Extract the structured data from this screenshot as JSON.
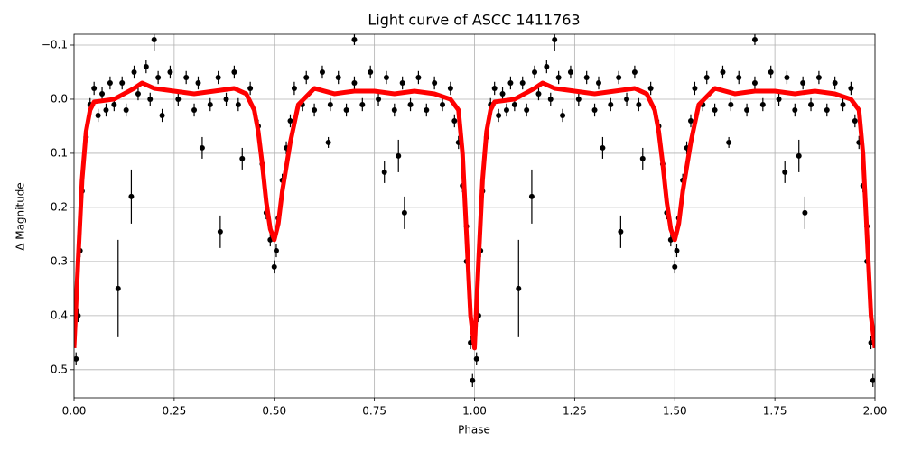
{
  "chart_data": {
    "type": "scatter",
    "title": "Light curve of ASCC 1411763",
    "x_label": "Phase",
    "y_label": "Δ Magnitude",
    "xlim": [
      0,
      2
    ],
    "ylim": [
      -0.12,
      0.552
    ],
    "y_inverted": true,
    "grid": true,
    "xticks": [
      {
        "value": 0,
        "label": "0.00"
      },
      {
        "value": 0.25,
        "label": "0.25"
      },
      {
        "value": 0.5,
        "label": "0.50"
      },
      {
        "value": 0.75,
        "label": "0.75"
      },
      {
        "value": 1,
        "label": "1.00"
      },
      {
        "value": 1.25,
        "label": "1.25"
      },
      {
        "value": 1.5,
        "label": "1.50"
      },
      {
        "value": 1.75,
        "label": "1.75"
      },
      {
        "value": 2,
        "label": "2.00"
      }
    ],
    "yticks": [
      {
        "value": -0.1,
        "label": "−0.1"
      },
      {
        "value": 0,
        "label": "0.0"
      },
      0.1,
      0.2,
      0.3,
      0.4,
      0.5
    ],
    "series": [
      {
        "type": "errorbar",
        "color": "#000000",
        "x": [
          0.005,
          0.01,
          0.015,
          0.02,
          0.03,
          0.04,
          0.05,
          0.06,
          0.07,
          0.08,
          0.09,
          0.1,
          0.12,
          0.13,
          0.15,
          0.16,
          0.18,
          0.19,
          0.21,
          0.22,
          0.24,
          0.26,
          0.28,
          0.3,
          0.31,
          0.34,
          0.36,
          0.38,
          0.4,
          0.41,
          0.44,
          0.46,
          0.47,
          0.48,
          0.49,
          0.5,
          0.505,
          0.51,
          0.52,
          0.53,
          0.54,
          0.55,
          0.57,
          0.58,
          0.6,
          0.62,
          0.64,
          0.66,
          0.68,
          0.7,
          0.72,
          0.74,
          0.76,
          0.78,
          0.8,
          0.82,
          0.84,
          0.86,
          0.88,
          0.9,
          0.92,
          0.94,
          0.95,
          0.96,
          0.97,
          0.98,
          0.99,
          0.995,
          0.11,
          0.143,
          0.365,
          0.42,
          0.32,
          0.7,
          0.775,
          0.825,
          0.81,
          0.635,
          0.98,
          0.2,
          1.005,
          1.01,
          1.015,
          1.02,
          1.03,
          1.04,
          1.05,
          1.06,
          1.07,
          1.08,
          1.09,
          1.1,
          1.12,
          1.13,
          1.15,
          1.16,
          1.18,
          1.19,
          1.21,
          1.22,
          1.24,
          1.26,
          1.28,
          1.3,
          1.31,
          1.34,
          1.36,
          1.38,
          1.4,
          1.41,
          1.44,
          1.46,
          1.47,
          1.48,
          1.49,
          1.5,
          1.505,
          1.51,
          1.52,
          1.53,
          1.54,
          1.55,
          1.57,
          1.58,
          1.6,
          1.62,
          1.64,
          1.66,
          1.68,
          1.7,
          1.72,
          1.74,
          1.76,
          1.78,
          1.8,
          1.82,
          1.84,
          1.86,
          1.88,
          1.9,
          1.92,
          1.94,
          1.95,
          1.96,
          1.97,
          1.98,
          1.99,
          1.995,
          1.11,
          1.143,
          1.365,
          1.42,
          1.32,
          1.7,
          1.775,
          1.825,
          1.81,
          1.635,
          1.98,
          1.2
        ],
        "values": [
          0.48,
          0.4,
          0.28,
          0.17,
          0.07,
          0.01,
          -0.02,
          0.03,
          -0.01,
          0.02,
          -0.03,
          0.01,
          -0.03,
          0.02,
          -0.05,
          -0.01,
          -0.06,
          0.0,
          -0.04,
          0.03,
          -0.05,
          0.0,
          -0.04,
          0.02,
          -0.03,
          0.01,
          -0.04,
          0.0,
          -0.05,
          0.01,
          -0.02,
          0.05,
          0.12,
          0.21,
          0.26,
          0.31,
          0.28,
          0.22,
          0.15,
          0.09,
          0.04,
          -0.02,
          0.01,
          -0.04,
          0.02,
          -0.05,
          0.01,
          -0.04,
          0.02,
          -0.03,
          0.01,
          -0.05,
          0.0,
          -0.04,
          0.02,
          -0.03,
          0.01,
          -0.04,
          0.02,
          -0.03,
          0.01,
          -0.02,
          0.04,
          0.08,
          0.16,
          0.3,
          0.45,
          0.52,
          0.35,
          0.18,
          0.245,
          0.11,
          0.09,
          -0.11,
          0.135,
          0.21,
          0.105,
          0.08,
          0.235,
          -0.11,
          0.48,
          0.4,
          0.28,
          0.17,
          0.07,
          0.01,
          -0.02,
          0.03,
          -0.01,
          0.02,
          -0.03,
          0.01,
          -0.03,
          0.02,
          -0.05,
          -0.01,
          -0.06,
          0.0,
          -0.04,
          0.03,
          -0.05,
          0.0,
          -0.04,
          0.02,
          -0.03,
          0.01,
          -0.04,
          0.0,
          -0.05,
          0.01,
          -0.02,
          0.05,
          0.12,
          0.21,
          0.26,
          0.31,
          0.28,
          0.22,
          0.15,
          0.09,
          0.04,
          -0.02,
          0.01,
          -0.04,
          0.02,
          -0.05,
          0.01,
          -0.04,
          0.02,
          -0.03,
          0.01,
          -0.05,
          0.0,
          -0.04,
          0.02,
          -0.03,
          0.01,
          -0.04,
          0.02,
          -0.03,
          0.01,
          -0.02,
          0.04,
          0.08,
          0.16,
          0.3,
          0.45,
          0.52,
          0.35,
          0.18,
          0.245,
          0.11,
          0.09,
          -0.11,
          0.135,
          0.21,
          0.105,
          0.08,
          0.235,
          -0.11
        ],
        "errors": [
          0.012,
          0.012,
          0.012,
          0.012,
          0.012,
          0.012,
          0.012,
          0.012,
          0.012,
          0.012,
          0.012,
          0.012,
          0.012,
          0.012,
          0.012,
          0.012,
          0.012,
          0.012,
          0.012,
          0.012,
          0.012,
          0.012,
          0.012,
          0.012,
          0.012,
          0.012,
          0.012,
          0.012,
          0.012,
          0.012,
          0.012,
          0.012,
          0.012,
          0.012,
          0.012,
          0.012,
          0.012,
          0.012,
          0.012,
          0.012,
          0.012,
          0.012,
          0.012,
          0.012,
          0.012,
          0.012,
          0.012,
          0.012,
          0.012,
          0.012,
          0.012,
          0.012,
          0.012,
          0.012,
          0.012,
          0.012,
          0.012,
          0.012,
          0.012,
          0.012,
          0.012,
          0.012,
          0.012,
          0.012,
          0.012,
          0.012,
          0.012,
          0.012,
          0.09,
          0.05,
          0.03,
          0.02,
          0.02,
          0.01,
          0.02,
          0.03,
          0.03,
          0.01,
          0.04,
          0.02,
          0.012,
          0.012,
          0.012,
          0.012,
          0.012,
          0.012,
          0.012,
          0.012,
          0.012,
          0.012,
          0.012,
          0.012,
          0.012,
          0.012,
          0.012,
          0.012,
          0.012,
          0.012,
          0.012,
          0.012,
          0.012,
          0.012,
          0.012,
          0.012,
          0.012,
          0.012,
          0.012,
          0.012,
          0.012,
          0.012,
          0.012,
          0.012,
          0.012,
          0.012,
          0.012,
          0.012,
          0.012,
          0.012,
          0.012,
          0.012,
          0.012,
          0.012,
          0.012,
          0.012,
          0.012,
          0.012,
          0.012,
          0.012,
          0.012,
          0.012,
          0.012,
          0.012,
          0.012,
          0.012,
          0.012,
          0.012,
          0.012,
          0.012,
          0.012,
          0.012,
          0.012,
          0.012,
          0.012,
          0.012,
          0.012,
          0.012,
          0.012,
          0.012,
          0.09,
          0.05,
          0.03,
          0.02,
          0.02,
          0.01,
          0.02,
          0.03,
          0.03,
          0.01,
          0.04,
          0.02
        ]
      },
      {
        "type": "line",
        "color": "#ff0000",
        "x": [
          0,
          0.01,
          0.02,
          0.03,
          0.04,
          0.05,
          0.1,
          0.15,
          0.17,
          0.2,
          0.25,
          0.3,
          0.35,
          0.4,
          0.43,
          0.45,
          0.46,
          0.47,
          0.48,
          0.49,
          0.5,
          0.51,
          0.52,
          0.54,
          0.56,
          0.6,
          0.65,
          0.7,
          0.75,
          0.8,
          0.85,
          0.9,
          0.94,
          0.96,
          0.97,
          0.98,
          0.99,
          1,
          1.01,
          1.02,
          1.03,
          1.04,
          1.05,
          1.1,
          1.15,
          1.17,
          1.2,
          1.25,
          1.3,
          1.35,
          1.4,
          1.43,
          1.45,
          1.46,
          1.47,
          1.48,
          1.49,
          1.5,
          1.51,
          1.52,
          1.54,
          1.56,
          1.6,
          1.65,
          1.7,
          1.75,
          1.8,
          1.85,
          1.9,
          1.94,
          1.96,
          1.97,
          1.98,
          1.99,
          2
        ],
        "values": [
          0.46,
          0.3,
          0.15,
          0.06,
          0.02,
          0.005,
          0.0,
          -0.02,
          -0.03,
          -0.02,
          -0.015,
          -0.01,
          -0.015,
          -0.02,
          -0.01,
          0.02,
          0.06,
          0.12,
          0.19,
          0.24,
          0.26,
          0.23,
          0.17,
          0.08,
          0.01,
          -0.02,
          -0.01,
          -0.015,
          -0.015,
          -0.01,
          -0.015,
          -0.01,
          0.0,
          0.02,
          0.1,
          0.25,
          0.4,
          0.46,
          0.3,
          0.15,
          0.06,
          0.02,
          0.005,
          0.0,
          -0.02,
          -0.03,
          -0.02,
          -0.015,
          -0.01,
          -0.015,
          -0.02,
          -0.01,
          0.02,
          0.06,
          0.12,
          0.19,
          0.24,
          0.26,
          0.23,
          0.17,
          0.08,
          0.01,
          -0.02,
          -0.01,
          -0.015,
          -0.015,
          -0.01,
          -0.015,
          -0.01,
          0.0,
          0.02,
          0.1,
          0.25,
          0.4,
          0.46
        ]
      }
    ]
  }
}
